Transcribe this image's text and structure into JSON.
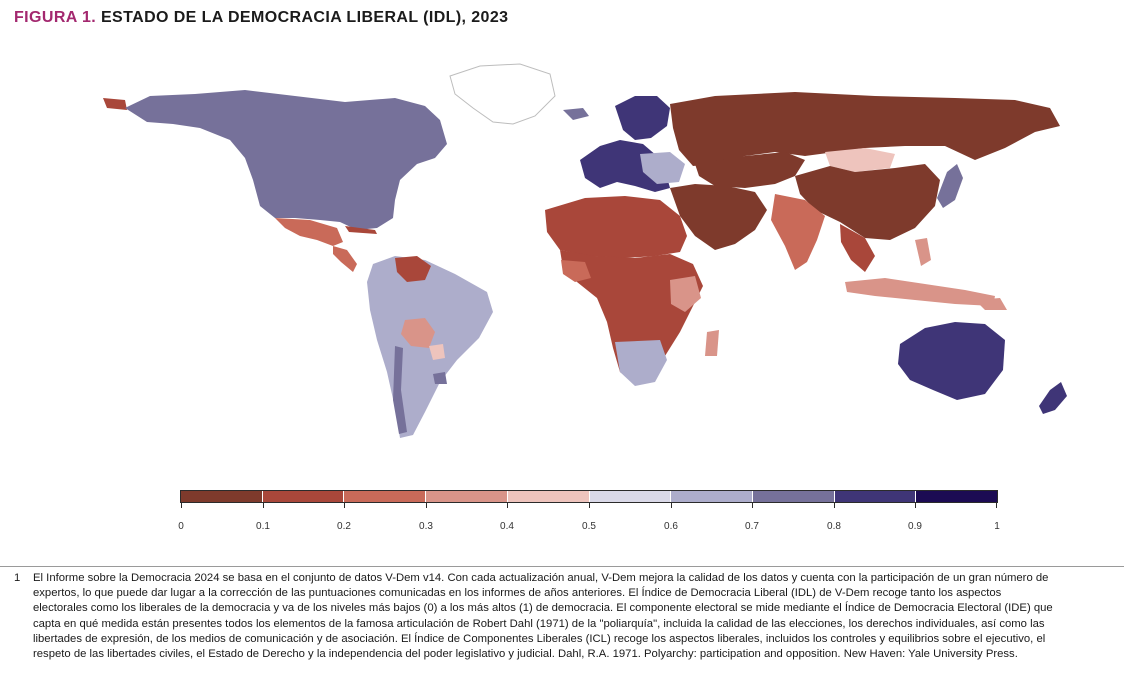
{
  "figure": {
    "label": "FIGURA 1.",
    "title": "ESTADO DE LA DEMOCRACIA LIBERAL (IDL), 2023"
  },
  "legend": {
    "ticks": [
      "0",
      "0.1",
      "0.2",
      "0.3",
      "0.4",
      "0.5",
      "0.6",
      "0.7",
      "0.8",
      "0.9",
      "1"
    ],
    "colors": [
      "#7e3a2c",
      "#a9473a",
      "#c96a59",
      "#d99489",
      "#eec4bd",
      "#dad9e8",
      "#adadcb",
      "#76719a",
      "#3f3577",
      "#1c0b53"
    ]
  },
  "footnote": {
    "number": "1",
    "text": "El Informe sobre la Democracia 2024 se basa en el conjunto de datos V-Dem v14. Con cada actualización anual, V-Dem mejora la calidad de los datos y cuenta con la participación de un gran número de expertos, lo que puede dar lugar a la corrección de las puntuaciones comunicadas en los informes de años anteriores. El Índice de Democracia Liberal (IDL) de V-Dem recoge tanto los aspectos electorales como los liberales de la democracia y va de los niveles más bajos (0) a los más altos (1) de democracia. El componente electoral se mide mediante el Índice de Democracia Electoral (IDE) que capta en qué medida están presentes todos los elementos de la famosa articulación de Robert Dahl (1971) de la \"poliarquía\", incluida la calidad de las elecciones, los derechos individuales, así como las libertades de expresión, de los medios de comunicación y de asociación. El Índice de Componentes Liberales (ICL) recoge los aspectos liberales, incluidos los controles y equilibrios sobre el ejecutivo, el respeto de las libertades civiles, el Estado de Derecho y la independencia del poder legislativo y judicial. Dahl, R.A. 1971. Polyarchy: participation and opposition. New Haven: Yale University Press."
  }
}
